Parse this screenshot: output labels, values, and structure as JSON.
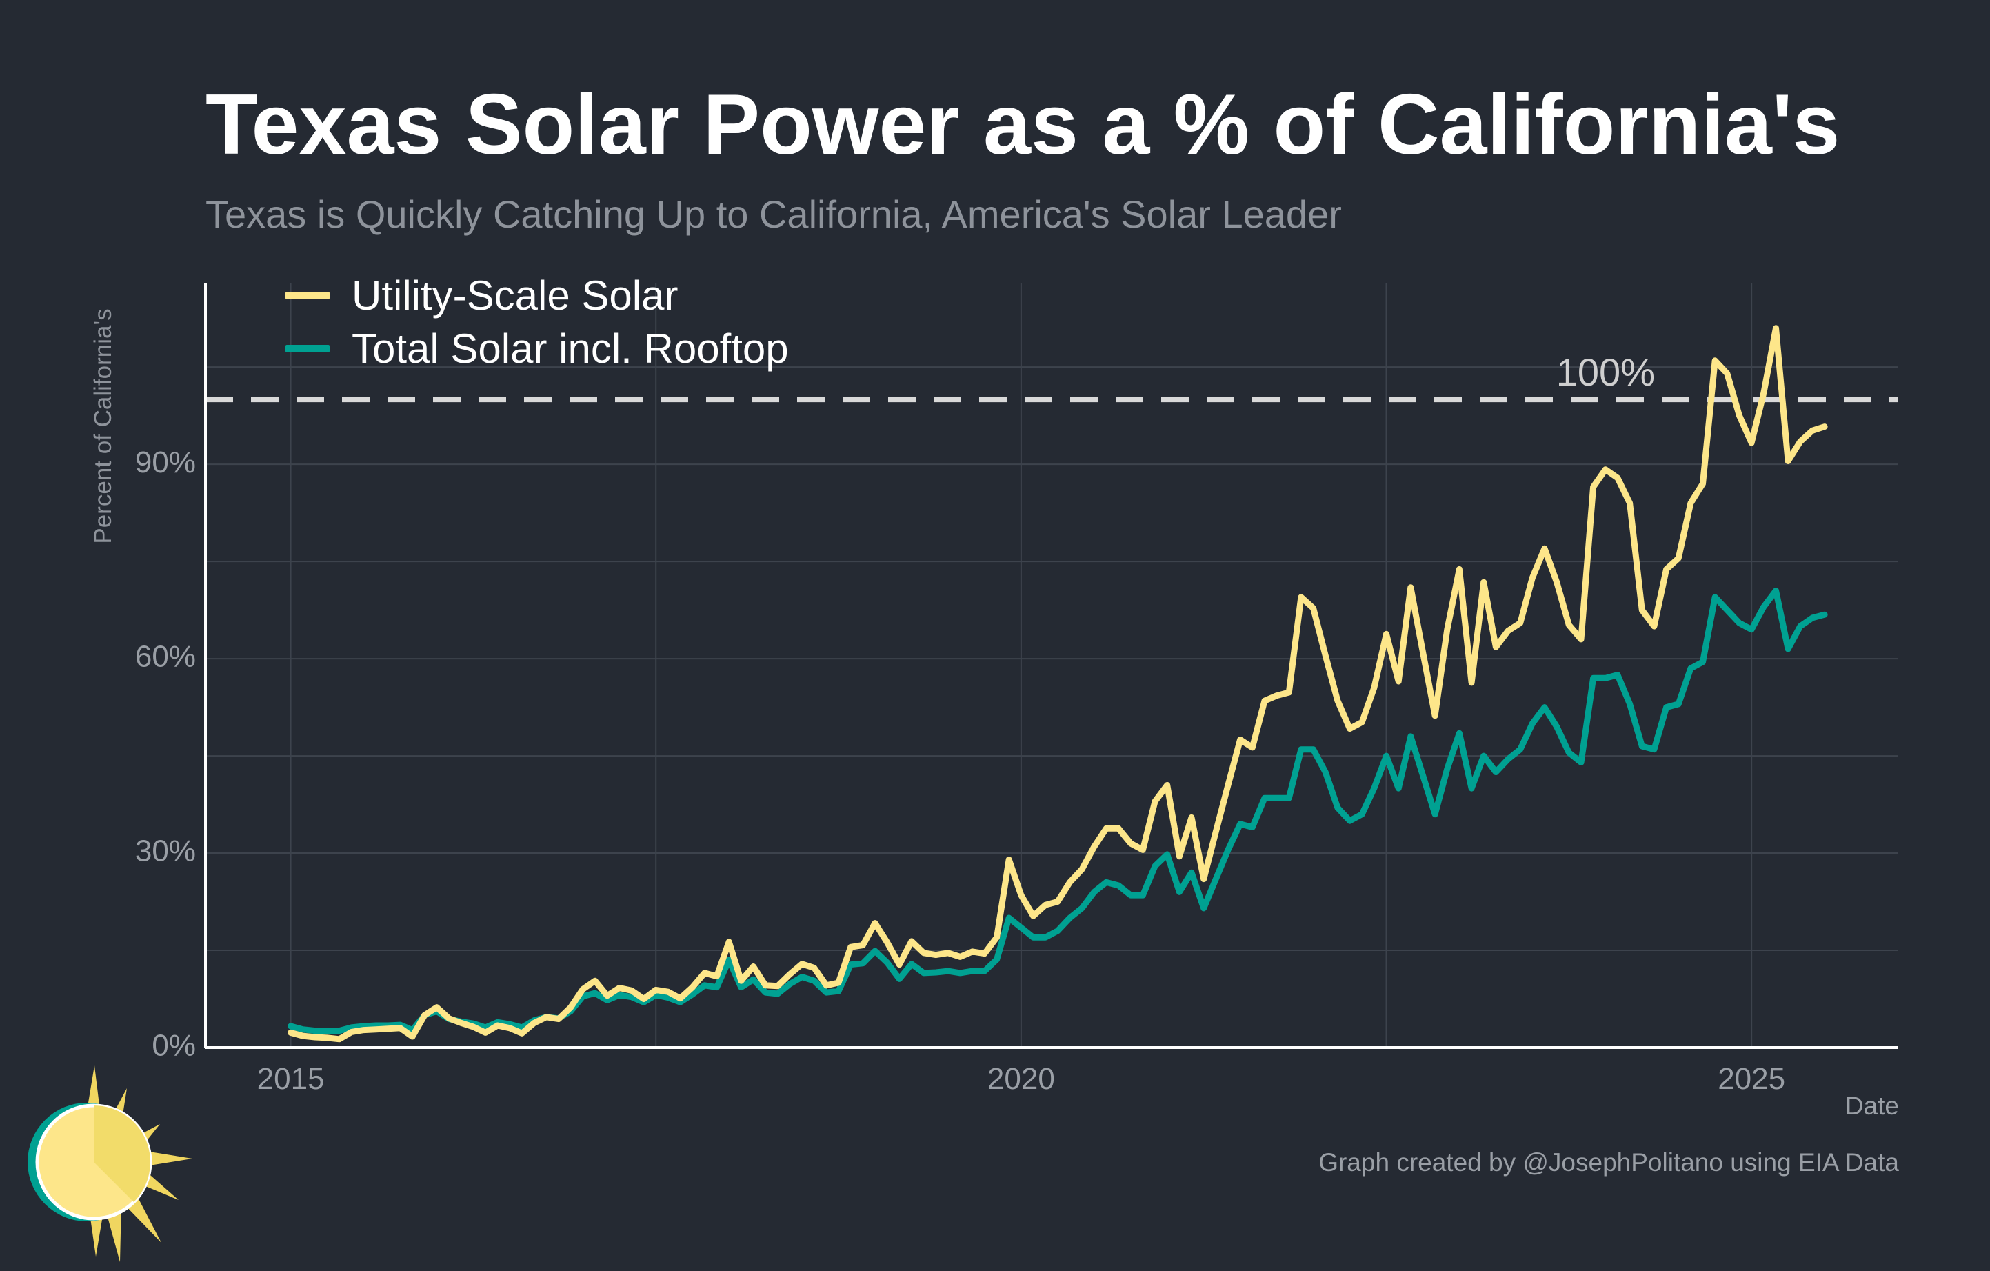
{
  "title": "Texas Solar Power as a % of California's",
  "subtitle": "Texas is Quickly Catching Up to California, America's Solar Leader",
  "caption": "Graph created by @JosephPolitano using EIA Data",
  "colors": {
    "background": "#252a33",
    "utility": "#fde68a",
    "total": "#00a192",
    "reference_line": "#d9d9d9",
    "grid": "#3d434d",
    "axis": "#ffffff",
    "text_muted": "#8e939b"
  },
  "chart_data": {
    "type": "line",
    "xlabel": "Date",
    "ylabel": "Percent of California's",
    "x_start": "2015-01",
    "x_frequency": "monthly",
    "xlim": [
      "2014-06",
      "2026-01"
    ],
    "ylim": [
      0,
      118
    ],
    "x_ticks": [
      "2015",
      "2020",
      "2025"
    ],
    "y_ticks": [
      "0%",
      "30%",
      "60%",
      "90%"
    ],
    "grid": true,
    "legend_position": "top-left",
    "reference_line": {
      "y": 100,
      "label": "100%",
      "style": "dashed"
    },
    "series": [
      {
        "name": "Utility-Scale Solar",
        "color": "#fde68a",
        "values": [
          2.3,
          1.8,
          1.6,
          1.5,
          1.3,
          2.4,
          2.7,
          2.8,
          2.9,
          3.0,
          1.7,
          5.0,
          6.2,
          4.5,
          3.8,
          3.2,
          2.3,
          3.4,
          3.0,
          2.2,
          3.8,
          4.7,
          4.4,
          6.2,
          9.0,
          10.3,
          8.0,
          9.2,
          8.8,
          7.5,
          8.9,
          8.6,
          7.6,
          9.3,
          11.5,
          11.0,
          16.3,
          10.3,
          12.5,
          9.6,
          9.5,
          11.3,
          12.9,
          12.3,
          9.6,
          10.0,
          15.5,
          15.8,
          19.2,
          16.2,
          12.8,
          16.4,
          14.6,
          14.3,
          14.6,
          14.0,
          14.8,
          14.5,
          17.0,
          29.0,
          23.5,
          20.3,
          22.0,
          22.5,
          25.5,
          27.5,
          31.0,
          33.8,
          33.8,
          31.5,
          30.5,
          38.0,
          40.5,
          29.5,
          35.5,
          26.0,
          33.3,
          40.5,
          47.5,
          46.3,
          53.5,
          54.3,
          54.8,
          69.5,
          67.8,
          60.5,
          53.5,
          49.2,
          50.2,
          55.5,
          63.8,
          56.5,
          71.0,
          61.0,
          51.2,
          64.5,
          73.8,
          56.3,
          71.8,
          61.8,
          64.3,
          65.5,
          72.5,
          77.0,
          71.8,
          65.2,
          63.0,
          86.5,
          89.2,
          87.9,
          84.0,
          67.5,
          65.0,
          73.8,
          75.5,
          84.0,
          87.0,
          106.0,
          104.0,
          97.5,
          93.3,
          101.0,
          111.0,
          90.5,
          93.5,
          95.2,
          95.8
        ]
      },
      {
        "name": "Total Solar incl. Rooftop",
        "color": "#00a192",
        "values": [
          3.3,
          2.8,
          2.6,
          2.6,
          2.6,
          3.1,
          3.3,
          3.4,
          3.4,
          3.5,
          2.7,
          5.0,
          5.6,
          4.4,
          4.0,
          3.7,
          3.1,
          3.9,
          3.6,
          3.1,
          4.2,
          4.7,
          4.5,
          5.6,
          7.9,
          8.4,
          7.3,
          8.1,
          7.8,
          7.0,
          8.1,
          7.7,
          7.0,
          8.2,
          9.6,
          9.3,
          13.5,
          9.3,
          10.5,
          8.5,
          8.3,
          9.8,
          10.9,
          10.3,
          8.5,
          8.7,
          12.8,
          13.0,
          14.9,
          13.1,
          10.6,
          12.9,
          11.5,
          11.6,
          11.8,
          11.5,
          11.8,
          11.8,
          13.6,
          20.0,
          18.5,
          17.0,
          17.0,
          18.0,
          20.0,
          21.5,
          24.0,
          25.5,
          25.0,
          23.5,
          23.5,
          28.0,
          29.8,
          24.0,
          27.0,
          21.5,
          26.0,
          30.5,
          34.5,
          34.0,
          38.5,
          38.5,
          38.5,
          46.0,
          46.0,
          42.5,
          37.0,
          35.0,
          36.0,
          40.0,
          45.0,
          40.0,
          48.0,
          42.0,
          36.0,
          43.0,
          48.5,
          40.0,
          45.0,
          42.5,
          44.5,
          46.0,
          50.0,
          52.5,
          49.5,
          45.5,
          44.0,
          57.0,
          57.0,
          57.5,
          53.0,
          46.5,
          46.0,
          52.5,
          53.0,
          58.5,
          59.5,
          69.5,
          67.5,
          65.5,
          64.5,
          68.0,
          70.5,
          61.5,
          65.0,
          66.3,
          66.8
        ]
      }
    ]
  },
  "logo": {
    "icon": "sun-logo-icon"
  }
}
